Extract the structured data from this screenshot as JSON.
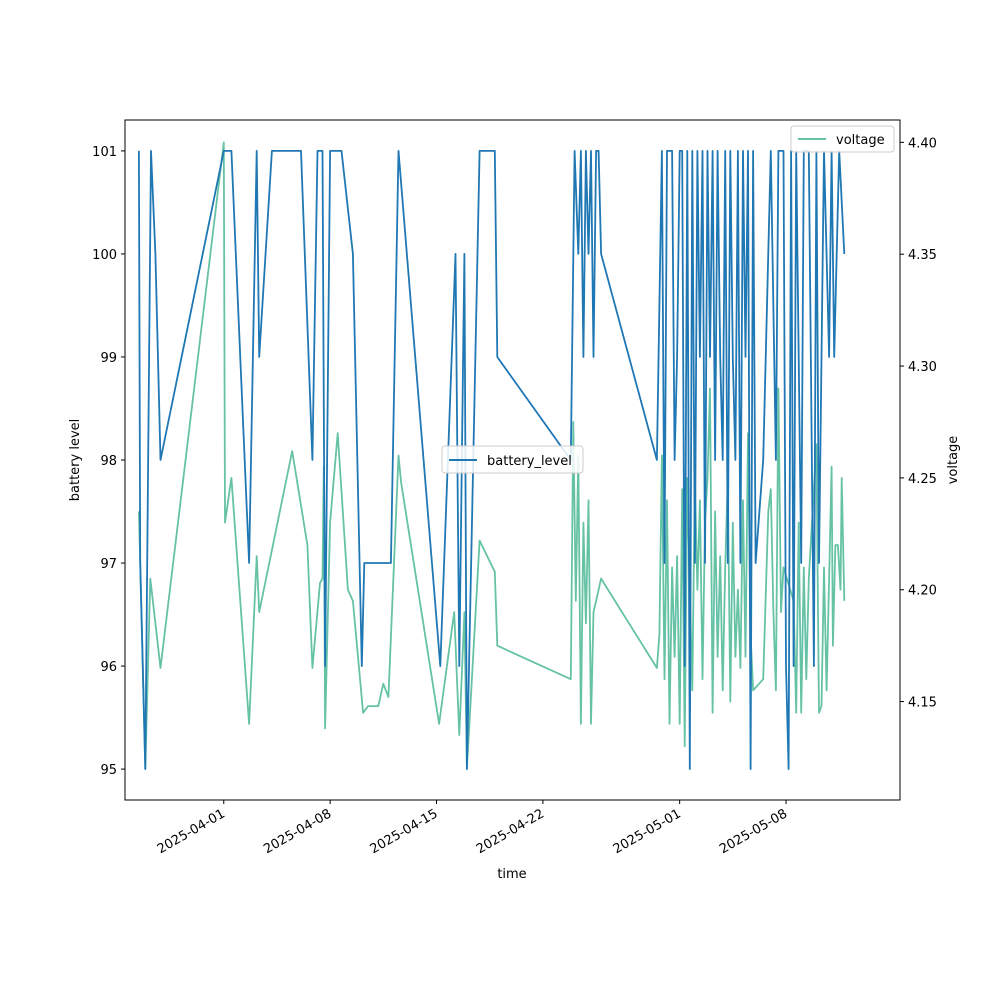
{
  "chart_data": {
    "type": "line",
    "xlabel": "time",
    "ylabel_left": "battery level",
    "ylabel_right": "voltage",
    "x_range": [
      "2025-03-25T12:00",
      "2025-05-15T12:00"
    ],
    "ylim_left": [
      94.7,
      101.3
    ],
    "ylim_right": [
      4.106,
      4.41
    ],
    "x_ticks": [
      "2025-04-01",
      "2025-04-08",
      "2025-04-15",
      "2025-04-22",
      "2025-05-01",
      "2025-05-08"
    ],
    "y_ticks_left": [
      95,
      96,
      97,
      98,
      99,
      100,
      101
    ],
    "y_ticks_right": [
      "4.15",
      "4.20",
      "4.25",
      "4.30",
      "4.35",
      "4.40"
    ],
    "grid": false,
    "series": [
      {
        "name": "battery_level",
        "axis": "left",
        "color": "#1f77b4",
        "legend_position": "center",
        "points": [
          [
            "2025-03-26T10:00",
            101
          ],
          [
            "2025-03-26T12:00",
            97
          ],
          [
            "2025-03-26T20:00",
            95
          ],
          [
            "2025-03-27T05:00",
            101
          ],
          [
            "2025-03-27T12:00",
            100
          ],
          [
            "2025-03-27T20:00",
            98
          ],
          [
            "2025-04-01T00:00",
            101
          ],
          [
            "2025-04-01T12:00",
            101
          ],
          [
            "2025-04-02T16:00",
            97
          ],
          [
            "2025-04-03T04:00",
            101
          ],
          [
            "2025-04-03T08:00",
            99
          ],
          [
            "2025-04-04T04:00",
            101
          ],
          [
            "2025-04-05T12:00",
            101
          ],
          [
            "2025-04-06T02:00",
            101
          ],
          [
            "2025-04-06T20:00",
            98
          ],
          [
            "2025-04-07T04:00",
            101
          ],
          [
            "2025-04-07T12:00",
            101
          ],
          [
            "2025-04-07T16:00",
            96
          ],
          [
            "2025-04-08T00:00",
            101
          ],
          [
            "2025-04-08T18:00",
            101
          ],
          [
            "2025-04-09T12:00",
            100
          ],
          [
            "2025-04-10T02:00",
            96
          ],
          [
            "2025-04-10T06:00",
            97
          ],
          [
            "2025-04-11T06:00",
            97
          ],
          [
            "2025-04-12T00:00",
            97
          ],
          [
            "2025-04-12T12:00",
            101
          ],
          [
            "2025-04-15T06:00",
            96
          ],
          [
            "2025-04-16T06:00",
            100
          ],
          [
            "2025-04-16T12:00",
            96
          ],
          [
            "2025-04-16T20:00",
            100
          ],
          [
            "2025-04-17T00:00",
            95
          ],
          [
            "2025-04-17T20:00",
            101
          ],
          [
            "2025-04-18T12:00",
            101
          ],
          [
            "2025-04-18T20:00",
            101
          ],
          [
            "2025-04-19T00:00",
            99
          ],
          [
            "2025-04-23T20:00",
            98
          ],
          [
            "2025-04-24T02:00",
            101
          ],
          [
            "2025-04-24T08:00",
            100
          ],
          [
            "2025-04-24T12:00",
            101
          ],
          [
            "2025-04-24T16:00",
            99
          ],
          [
            "2025-04-24T20:00",
            101
          ],
          [
            "2025-04-25T00:00",
            100
          ],
          [
            "2025-04-25T04:00",
            101
          ],
          [
            "2025-04-25T08:00",
            99
          ],
          [
            "2025-04-25T12:00",
            101
          ],
          [
            "2025-04-25T16:00",
            101
          ],
          [
            "2025-04-25T20:00",
            100
          ],
          [
            "2025-04-29T12:00",
            98
          ],
          [
            "2025-04-29T20:00",
            101
          ],
          [
            "2025-04-30T00:00",
            97
          ],
          [
            "2025-04-30T04:00",
            101
          ],
          [
            "2025-04-30T12:00",
            101
          ],
          [
            "2025-04-30T16:00",
            98
          ],
          [
            "2025-04-30T20:00",
            99
          ],
          [
            "2025-05-01T00:00",
            101
          ],
          [
            "2025-05-01T04:00",
            101
          ],
          [
            "2025-05-01T08:00",
            96
          ],
          [
            "2025-05-01T12:00",
            101
          ],
          [
            "2025-05-01T16:00",
            95
          ],
          [
            "2025-05-01T20:00",
            101
          ],
          [
            "2025-05-02T00:00",
            97
          ],
          [
            "2025-05-02T04:00",
            101
          ],
          [
            "2025-05-02T08:00",
            99
          ],
          [
            "2025-05-02T12:00",
            101
          ],
          [
            "2025-05-02T16:00",
            97
          ],
          [
            "2025-05-02T20:00",
            101
          ],
          [
            "2025-05-03T00:00",
            99
          ],
          [
            "2025-05-03T04:00",
            101
          ],
          [
            "2025-05-03T08:00",
            98
          ],
          [
            "2025-05-03T12:00",
            101
          ],
          [
            "2025-05-03T16:00",
            99
          ],
          [
            "2025-05-03T20:00",
            98
          ],
          [
            "2025-05-04T00:00",
            101
          ],
          [
            "2025-05-04T04:00",
            97
          ],
          [
            "2025-05-04T08:00",
            101
          ],
          [
            "2025-05-04T12:00",
            99
          ],
          [
            "2025-05-04T16:00",
            98
          ],
          [
            "2025-05-04T20:00",
            101
          ],
          [
            "2025-05-05T00:00",
            97
          ],
          [
            "2025-05-05T04:00",
            101
          ],
          [
            "2025-05-05T08:00",
            99
          ],
          [
            "2025-05-05T12:00",
            101
          ],
          [
            "2025-05-05T16:00",
            95
          ],
          [
            "2025-05-05T20:00",
            101
          ],
          [
            "2025-05-06T00:00",
            97
          ],
          [
            "2025-05-06T12:00",
            98
          ],
          [
            "2025-05-07T00:00",
            101
          ],
          [
            "2025-05-07T08:00",
            98
          ],
          [
            "2025-05-07T12:00",
            101
          ],
          [
            "2025-05-07T20:00",
            101
          ],
          [
            "2025-05-08T00:00",
            96
          ],
          [
            "2025-05-08T04:00",
            95
          ],
          [
            "2025-05-08T08:00",
            101
          ],
          [
            "2025-05-08T12:00",
            96
          ],
          [
            "2025-05-08T16:00",
            101
          ],
          [
            "2025-05-09T00:00",
            97
          ],
          [
            "2025-05-09T04:00",
            101
          ],
          [
            "2025-05-09T12:00",
            101
          ],
          [
            "2025-05-09T20:00",
            96
          ],
          [
            "2025-05-10T00:00",
            101
          ],
          [
            "2025-05-10T04:00",
            97
          ],
          [
            "2025-05-10T12:00",
            101
          ],
          [
            "2025-05-10T20:00",
            99
          ],
          [
            "2025-05-11T00:00",
            101
          ],
          [
            "2025-05-11T04:00",
            99
          ],
          [
            "2025-05-11T12:00",
            101
          ],
          [
            "2025-05-11T20:00",
            100
          ]
        ]
      },
      {
        "name": "voltage",
        "axis": "right",
        "color": "#66c2a5",
        "legend_position": "top-right",
        "points": [
          [
            "2025-03-26T10:00",
            4.235
          ],
          [
            "2025-03-26T14:00",
            4.19
          ],
          [
            "2025-03-26T20:00",
            4.12
          ],
          [
            "2025-03-27T04:00",
            4.205
          ],
          [
            "2025-03-27T20:00",
            4.165
          ],
          [
            "2025-04-01T00:00",
            4.4
          ],
          [
            "2025-04-01T02:00",
            4.23
          ],
          [
            "2025-04-01T12:00",
            4.25
          ],
          [
            "2025-04-02T16:00",
            4.14
          ],
          [
            "2025-04-03T04:00",
            4.215
          ],
          [
            "2025-04-03T08:00",
            4.19
          ],
          [
            "2025-04-05T12:00",
            4.262
          ],
          [
            "2025-04-06T12:00",
            4.22
          ],
          [
            "2025-04-06T20:00",
            4.165
          ],
          [
            "2025-04-07T08:00",
            4.203
          ],
          [
            "2025-04-07T12:00",
            4.205
          ],
          [
            "2025-04-07T14:00",
            4.255
          ],
          [
            "2025-04-07T16:00",
            4.138
          ],
          [
            "2025-04-08T00:00",
            4.23
          ],
          [
            "2025-04-08T12:00",
            4.27
          ],
          [
            "2025-04-09T04:00",
            4.2
          ],
          [
            "2025-04-09T12:00",
            4.195
          ],
          [
            "2025-04-10T04:00",
            4.145
          ],
          [
            "2025-04-10T12:00",
            4.148
          ],
          [
            "2025-04-11T04:00",
            4.148
          ],
          [
            "2025-04-11T12:00",
            4.158
          ],
          [
            "2025-04-11T20:00",
            4.152
          ],
          [
            "2025-04-12T12:00",
            4.26
          ],
          [
            "2025-04-12T16:00",
            4.248
          ],
          [
            "2025-04-15T04:00",
            4.14
          ],
          [
            "2025-04-16T04:00",
            4.19
          ],
          [
            "2025-04-16T12:00",
            4.135
          ],
          [
            "2025-04-16T20:00",
            4.19
          ],
          [
            "2025-04-17T00:00",
            4.12
          ],
          [
            "2025-04-17T20:00",
            4.222
          ],
          [
            "2025-04-18T20:00",
            4.208
          ],
          [
            "2025-04-19T00:00",
            4.175
          ],
          [
            "2025-04-23T20:00",
            4.16
          ],
          [
            "2025-04-24T00:00",
            4.275
          ],
          [
            "2025-04-24T04:00",
            4.195
          ],
          [
            "2025-04-24T08:00",
            4.26
          ],
          [
            "2025-04-24T12:00",
            4.14
          ],
          [
            "2025-04-24T16:00",
            4.23
          ],
          [
            "2025-04-24T20:00",
            4.185
          ],
          [
            "2025-04-25T00:00",
            4.24
          ],
          [
            "2025-04-25T04:00",
            4.14
          ],
          [
            "2025-04-25T08:00",
            4.19
          ],
          [
            "2025-04-25T12:00",
            4.195
          ],
          [
            "2025-04-25T16:00",
            4.2
          ],
          [
            "2025-04-25T20:00",
            4.205
          ],
          [
            "2025-04-29T12:00",
            4.165
          ],
          [
            "2025-04-29T16:00",
            4.18
          ],
          [
            "2025-04-29T20:00",
            4.26
          ],
          [
            "2025-04-30T00:00",
            4.16
          ],
          [
            "2025-04-30T04:00",
            4.24
          ],
          [
            "2025-04-30T08:00",
            4.14
          ],
          [
            "2025-04-30T12:00",
            4.21
          ],
          [
            "2025-04-30T16:00",
            4.17
          ],
          [
            "2025-04-30T20:00",
            4.215
          ],
          [
            "2025-05-01T00:00",
            4.14
          ],
          [
            "2025-05-01T04:00",
            4.245
          ],
          [
            "2025-05-01T08:00",
            4.13
          ],
          [
            "2025-05-01T12:00",
            4.25
          ],
          [
            "2025-05-01T16:00",
            4.2
          ],
          [
            "2025-05-01T20:00",
            4.155
          ],
          [
            "2025-05-02T00:00",
            4.25
          ],
          [
            "2025-05-02T04:00",
            4.2
          ],
          [
            "2025-05-02T08:00",
            4.24
          ],
          [
            "2025-05-02T12:00",
            4.16
          ],
          [
            "2025-05-02T16:00",
            4.23
          ],
          [
            "2025-05-02T20:00",
            4.25
          ],
          [
            "2025-05-03T00:00",
            4.29
          ],
          [
            "2025-05-03T04:00",
            4.145
          ],
          [
            "2025-05-03T08:00",
            4.235
          ],
          [
            "2025-05-03T12:00",
            4.17
          ],
          [
            "2025-05-03T16:00",
            4.215
          ],
          [
            "2025-05-03T20:00",
            4.155
          ],
          [
            "2025-05-04T00:00",
            4.21
          ],
          [
            "2025-05-04T04:00",
            4.25
          ],
          [
            "2025-05-04T08:00",
            4.15
          ],
          [
            "2025-05-04T12:00",
            4.23
          ],
          [
            "2025-05-04T16:00",
            4.17
          ],
          [
            "2025-05-04T20:00",
            4.2
          ],
          [
            "2025-05-05T00:00",
            4.165
          ],
          [
            "2025-05-05T04:00",
            4.24
          ],
          [
            "2025-05-05T08:00",
            4.17
          ],
          [
            "2025-05-05T12:00",
            4.27
          ],
          [
            "2025-05-05T16:00",
            4.18
          ],
          [
            "2025-05-05T20:00",
            4.155
          ],
          [
            "2025-05-06T12:00",
            4.16
          ],
          [
            "2025-05-06T20:00",
            4.235
          ],
          [
            "2025-05-07T00:00",
            4.245
          ],
          [
            "2025-05-07T04:00",
            4.19
          ],
          [
            "2025-05-07T08:00",
            4.155
          ],
          [
            "2025-05-07T12:00",
            4.29
          ],
          [
            "2025-05-07T16:00",
            4.19
          ],
          [
            "2025-05-07T20:00",
            4.21
          ],
          [
            "2025-05-08T12:00",
            4.195
          ],
          [
            "2025-05-08T16:00",
            4.145
          ],
          [
            "2025-05-08T20:00",
            4.23
          ],
          [
            "2025-05-09T00:00",
            4.145
          ],
          [
            "2025-05-09T04:00",
            4.21
          ],
          [
            "2025-05-09T08:00",
            4.16
          ],
          [
            "2025-05-09T12:00",
            4.205
          ],
          [
            "2025-05-10T00:00",
            4.265
          ],
          [
            "2025-05-10T04:00",
            4.145
          ],
          [
            "2025-05-10T08:00",
            4.148
          ],
          [
            "2025-05-10T12:00",
            4.21
          ],
          [
            "2025-05-10T16:00",
            4.155
          ],
          [
            "2025-05-10T20:00",
            4.205
          ],
          [
            "2025-05-11T00:00",
            4.255
          ],
          [
            "2025-05-11T02:00",
            4.175
          ],
          [
            "2025-05-11T06:00",
            4.22
          ],
          [
            "2025-05-11T10:00",
            4.22
          ],
          [
            "2025-05-11T14:00",
            4.2
          ],
          [
            "2025-05-11T16:00",
            4.25
          ],
          [
            "2025-05-11T20:00",
            4.195
          ]
        ]
      }
    ]
  }
}
